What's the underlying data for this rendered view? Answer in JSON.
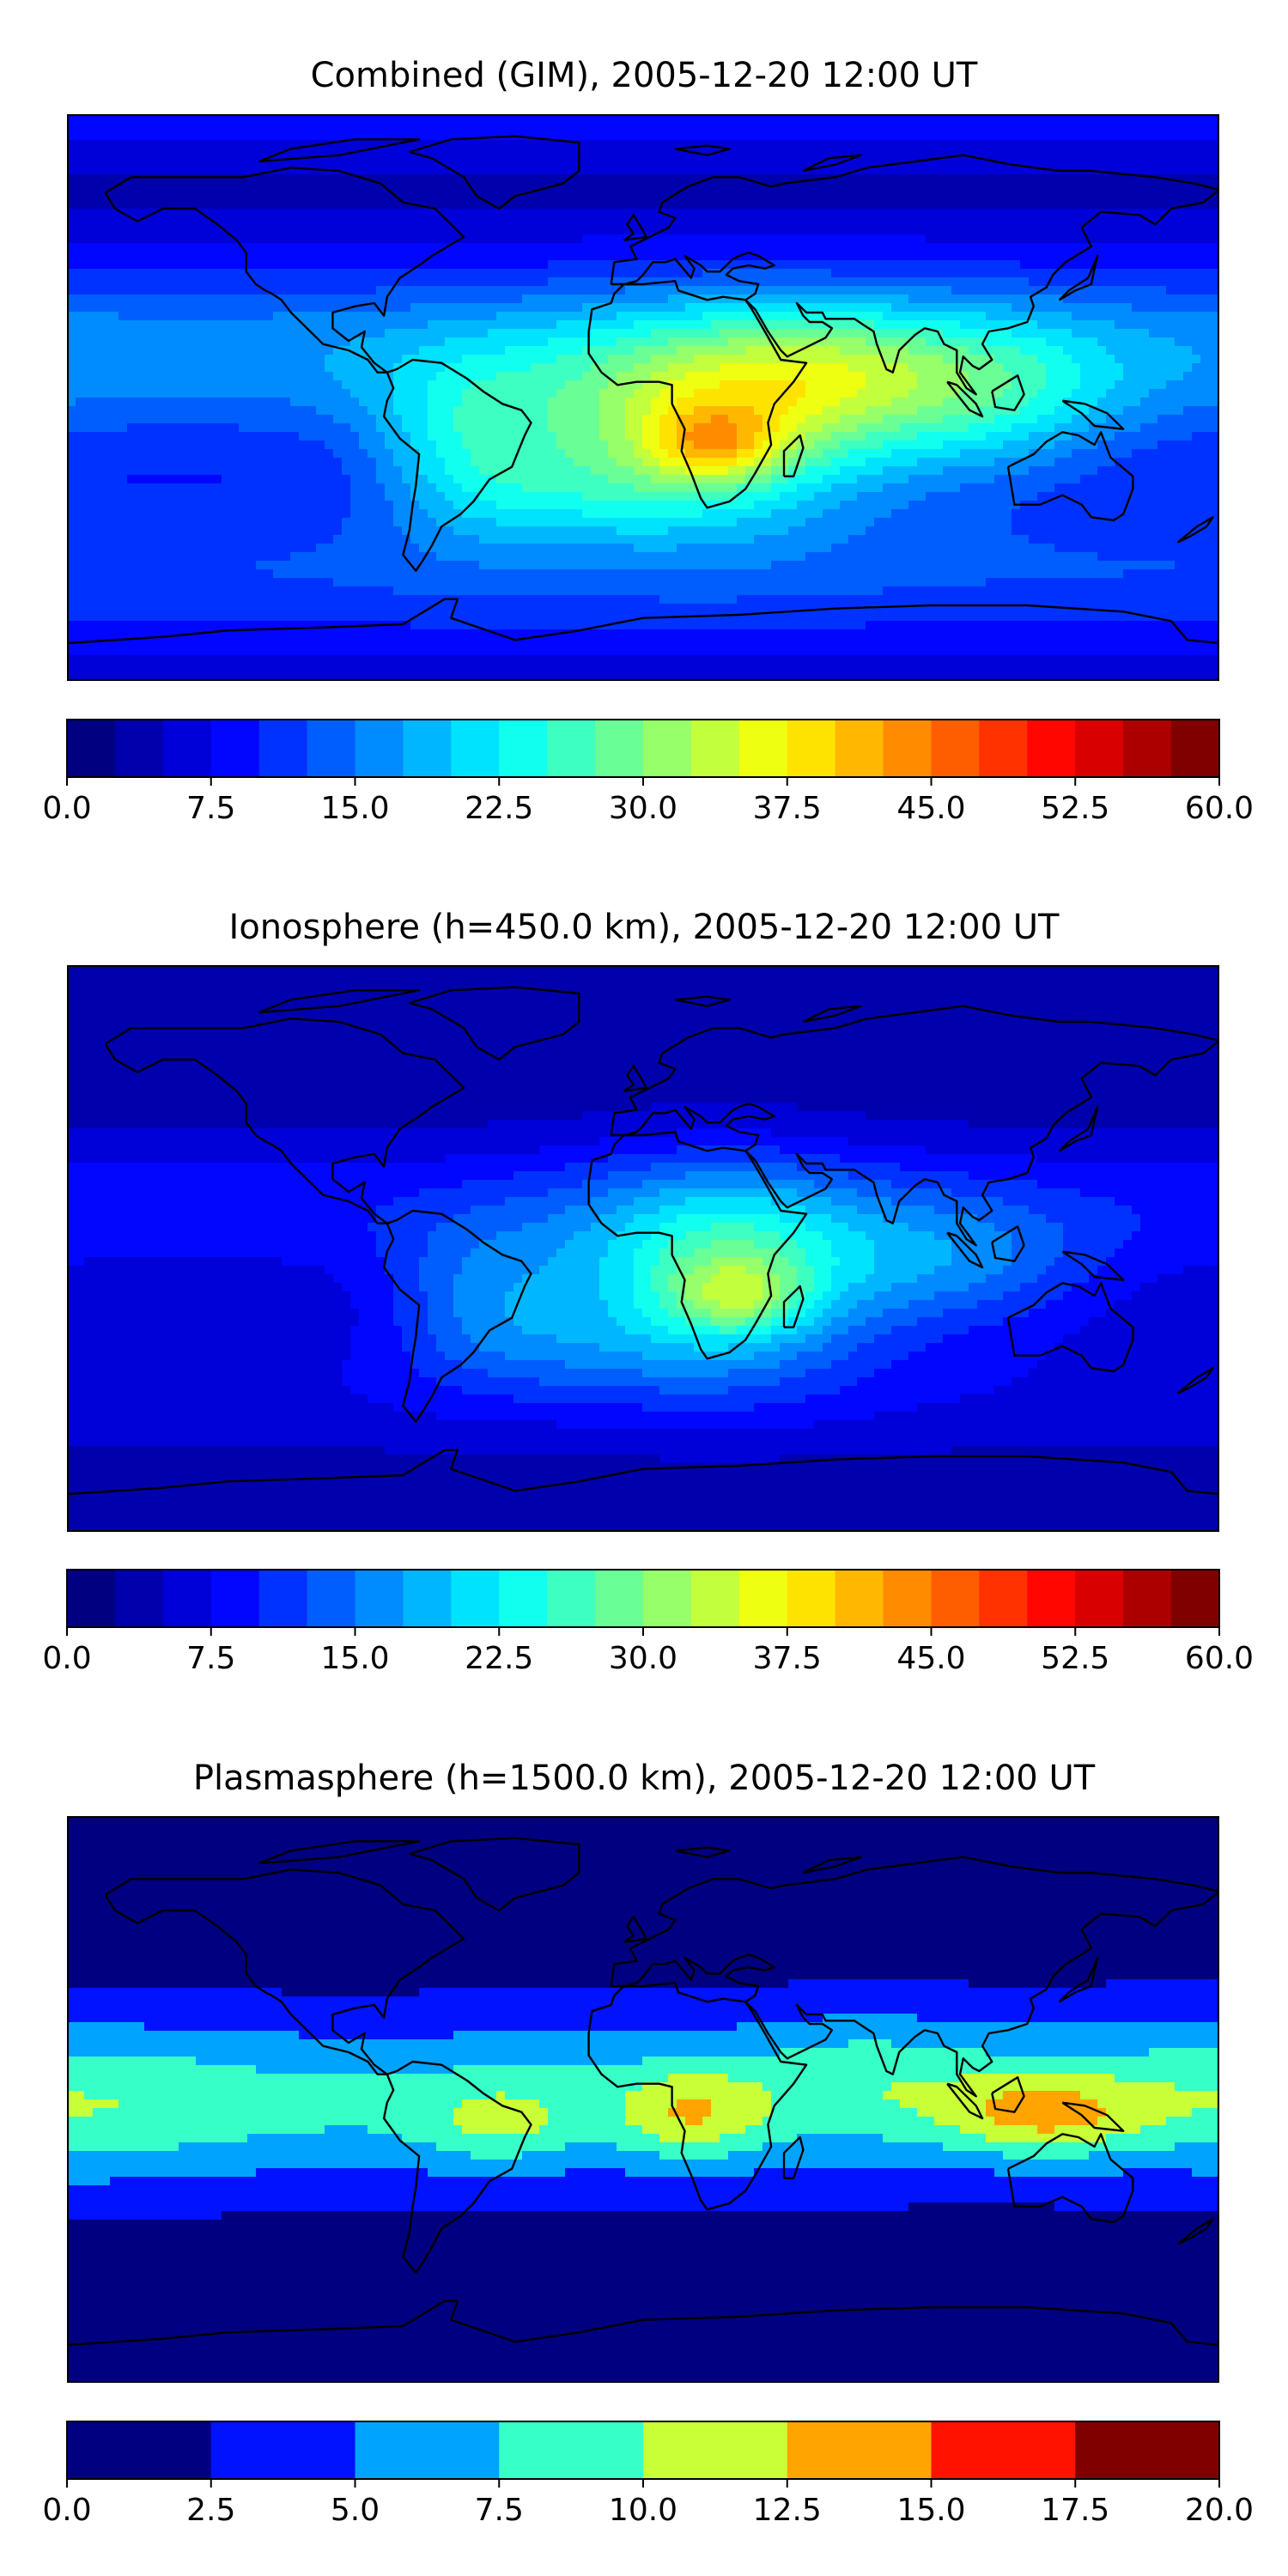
{
  "chart_data": [
    {
      "type": "heatmap",
      "map_type": "global filled contour map with coastlines",
      "title": "Combined (GIM), 2005-12-20 12:00 UT",
      "colormap": "jet",
      "levels": [
        0,
        2.5,
        5,
        7.5,
        10,
        12.5,
        15,
        17.5,
        20,
        22.5,
        25,
        27.5,
        30,
        32.5,
        35,
        37.5,
        40,
        42.5,
        45,
        47.5,
        50,
        52.5,
        55,
        57.5,
        60
      ],
      "colorbar": {
        "range": [
          0,
          60
        ],
        "ticks": [
          "0.0",
          "7.5",
          "15.0",
          "22.5",
          "30.0",
          "37.5",
          "45.0",
          "52.5",
          "60.0"
        ]
      },
      "features": [
        {
          "region": "southern Africa / equatorial Atlantic",
          "lon": 20,
          "lat": -15,
          "value": 44
        },
        {
          "region": "Africa / Indian Ocean",
          "lon": 25,
          "lat": 0,
          "value": 35
        },
        {
          "region": "South America",
          "lon": -55,
          "lat": -15,
          "value": 28
        },
        {
          "region": "Maritime Continent",
          "lon": 110,
          "lat": 0,
          "value": 24
        },
        {
          "region": "high latitudes",
          "lon": 0,
          "lat": 80,
          "value": 6
        }
      ]
    },
    {
      "type": "heatmap",
      "map_type": "global filled contour map with coastlines",
      "title": "Ionosphere  (h=450.0 km), 2005-12-20 12:00 UT",
      "colormap": "jet",
      "levels": [
        0,
        2.5,
        5,
        7.5,
        10,
        12.5,
        15,
        17.5,
        20,
        22.5,
        25,
        27.5,
        30,
        32.5,
        35,
        37.5,
        40,
        42.5,
        45,
        47.5,
        50,
        52.5,
        55,
        57.5,
        60
      ],
      "colorbar": {
        "range": [
          0,
          60
        ],
        "ticks": [
          "0.0",
          "7.5",
          "15.0",
          "22.5",
          "30.0",
          "37.5",
          "45.0",
          "52.5",
          "60.0"
        ]
      },
      "features": [
        {
          "region": "southern Africa / Madagascar",
          "lon": 30,
          "lat": -15,
          "value": 37
        },
        {
          "region": "Africa",
          "lon": 15,
          "lat": 5,
          "value": 28
        },
        {
          "region": "South America",
          "lon": -55,
          "lat": -15,
          "value": 17
        },
        {
          "region": "Pacific",
          "lon": -150,
          "lat": 0,
          "value": 5
        }
      ]
    },
    {
      "type": "heatmap",
      "map_type": "global filled contour map with coastlines",
      "title": "Plasmasphere (h=1500.0 km), 2005-12-20 12:00 UT",
      "colormap": "jet",
      "levels": [
        0,
        2.5,
        5,
        7.5,
        10,
        12.5,
        15,
        17.5,
        20
      ],
      "colorbar": {
        "range": [
          0,
          20
        ],
        "ticks": [
          "0.0",
          "2.5",
          "5.0",
          "7.5",
          "10.0",
          "12.5",
          "15.0",
          "17.5",
          "20.0"
        ]
      },
      "features": [
        {
          "region": "equatorial Africa",
          "lon": 15,
          "lat": -5,
          "value": 13.5
        },
        {
          "region": "Indonesia",
          "lon": 125,
          "lat": -5,
          "value": 13.5
        },
        {
          "region": "Brazil",
          "lon": -45,
          "lat": -8,
          "value": 11
        },
        {
          "region": "equatorial band",
          "lon": 0,
          "lat": 0,
          "value": 8
        },
        {
          "region": "high latitudes",
          "lon": 0,
          "lat": 75,
          "value": 1
        }
      ]
    }
  ]
}
